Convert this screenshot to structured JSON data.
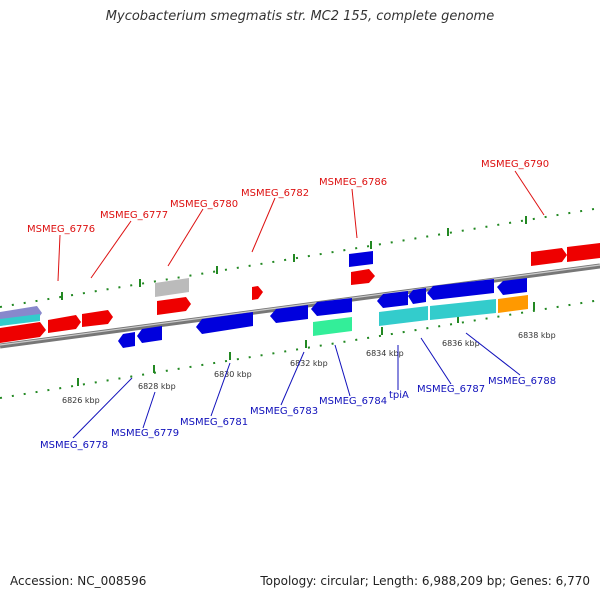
{
  "title": "Mycobacterium smegmatis str. MC2 155, complete genome",
  "footer": {
    "accession": "Accession: NC_008596",
    "summary": "Topology: circular; Length: 6,988,209 bp; Genes: 6,770"
  },
  "colors": {
    "forward_gene": "#ee0000",
    "reverse_gene": "#0000dd",
    "label_forward": "#dd1111",
    "label_reverse": "#1111bb",
    "tick": "#228822",
    "backbone": "#777777",
    "teal": "#33cccc",
    "green": "#33ee99",
    "orange": "#ff9900",
    "gray": "#bbbbbb",
    "purple": "#8888cc"
  },
  "kbp_ticks": [
    "6826 kbp",
    "6828 kbp",
    "6830 kbp",
    "6832 kbp",
    "6834 kbp",
    "6836 kbp",
    "6838 kbp"
  ],
  "forward_labels": [
    "MSMEG_6776",
    "MSMEG_6777",
    "MSMEG_6780",
    "MSMEG_6782",
    "MSMEG_6786",
    "MSMEG_6790"
  ],
  "reverse_labels": [
    "MSMEG_6778",
    "MSMEG_6779",
    "MSMEG_6781",
    "MSMEG_6783",
    "MSMEG_6784",
    "tpiA",
    "MSMEG_6787",
    "MSMEG_6788"
  ]
}
